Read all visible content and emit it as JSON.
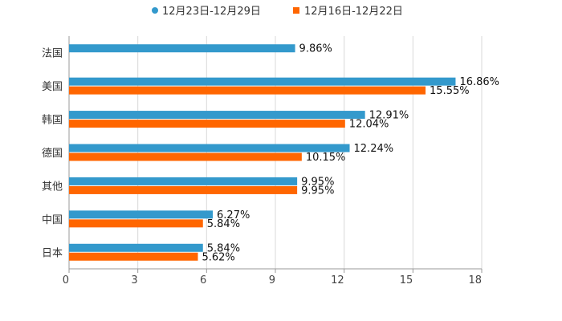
{
  "chart_data": {
    "type": "bar",
    "orientation": "horizontal",
    "title": "",
    "xlabel": "",
    "ylabel": "",
    "xlim": [
      0,
      18
    ],
    "ticks": [
      0,
      3,
      6,
      9,
      12,
      15,
      18
    ],
    "grid": true,
    "legend_position": "top-center",
    "categories": [
      "法国",
      "美国",
      "韩国",
      "德国",
      "其他",
      "中国",
      "日本"
    ],
    "series": [
      {
        "name": "12月23日-12月29日",
        "color": "#3399cc",
        "values": [
          9.86,
          16.86,
          12.91,
          12.24,
          9.95,
          6.27,
          5.84
        ],
        "labels": [
          "9.86%",
          "16.86%",
          "12.91%",
          "12.24%",
          "9.95%",
          "6.27%",
          "5.84%"
        ]
      },
      {
        "name": "12月16日-12月22日",
        "color": "#ff6600",
        "values": [
          null,
          15.55,
          12.04,
          10.15,
          9.95,
          5.84,
          5.62
        ],
        "labels": [
          null,
          "15.55%",
          "12.04%",
          "10.15%",
          "9.95%",
          "5.84%",
          "5.62%"
        ]
      }
    ]
  }
}
